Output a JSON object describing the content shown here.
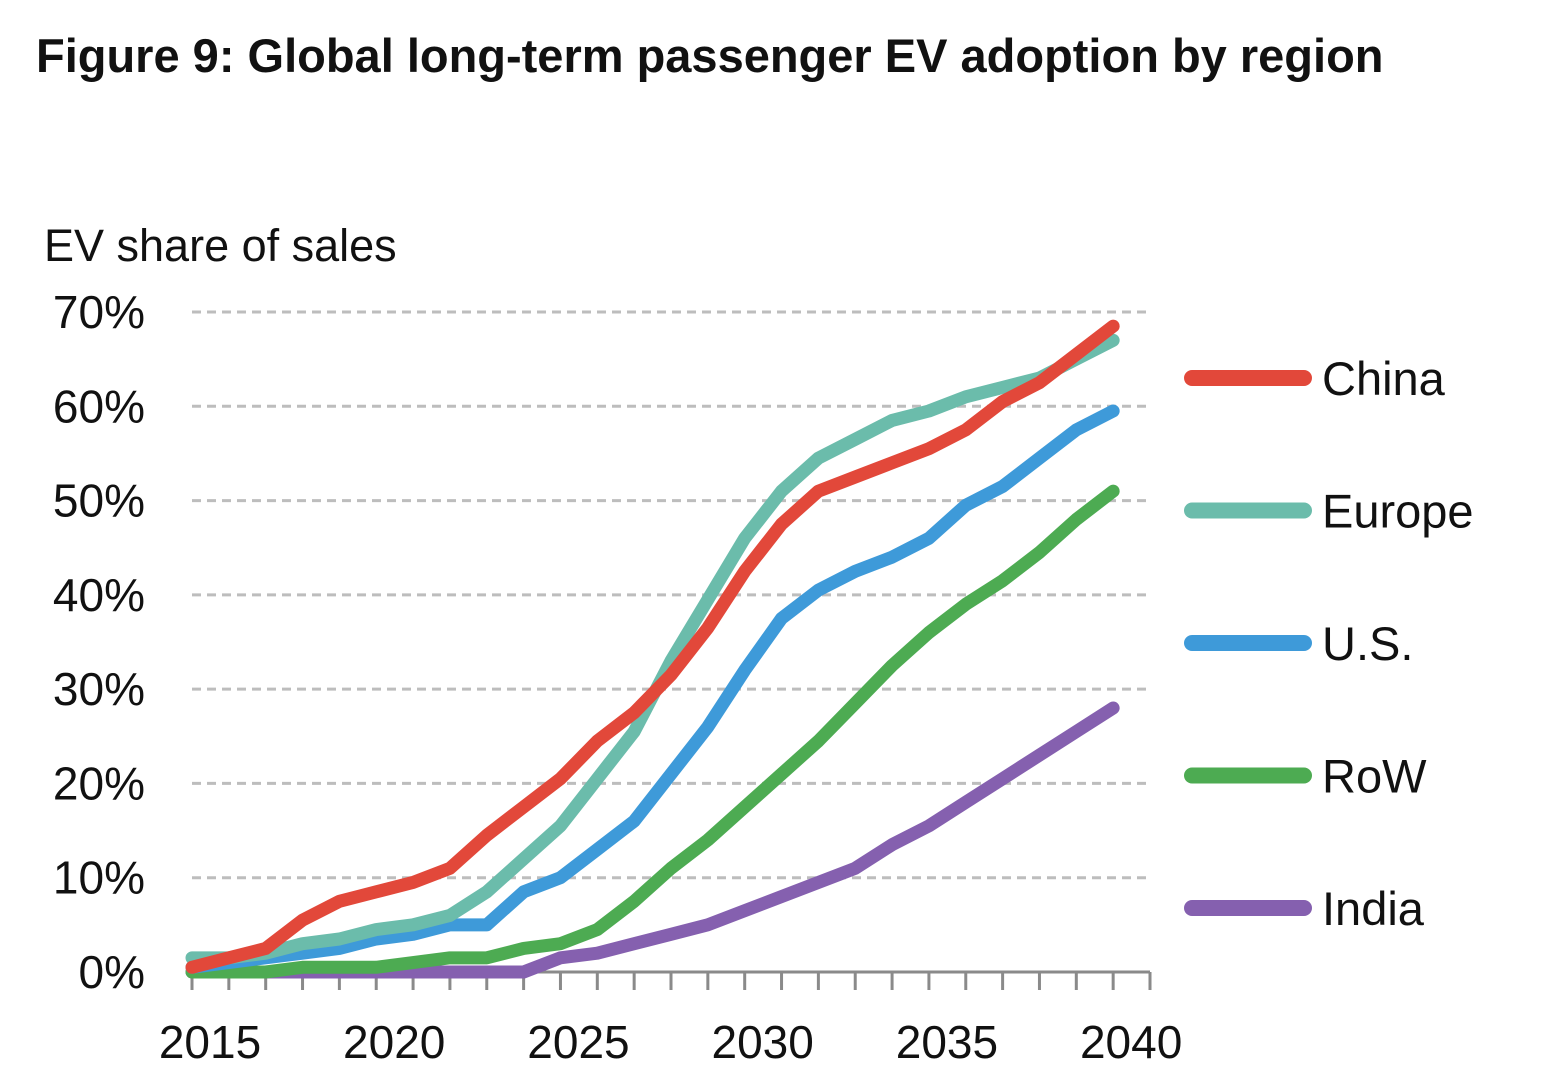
{
  "chart_data": {
    "type": "line",
    "title": "Figure 9: Global long-term passenger EV adoption by region",
    "ylabel": "EV share of sales",
    "xlabel": "",
    "x": [
      2015,
      2016,
      2017,
      2018,
      2019,
      2020,
      2021,
      2022,
      2023,
      2024,
      2025,
      2026,
      2027,
      2028,
      2029,
      2030,
      2031,
      2032,
      2033,
      2034,
      2035,
      2036,
      2037,
      2038,
      2039,
      2040
    ],
    "xlim": [
      2015,
      2041
    ],
    "ylim": [
      0,
      70
    ],
    "x_ticks": [
      "2015",
      "2020",
      "2025",
      "2030",
      "2035",
      "2040"
    ],
    "y_ticks": [
      "0%",
      "10%",
      "20%",
      "30%",
      "40%",
      "50%",
      "60%",
      "70%"
    ],
    "grid": "horizontal dashed",
    "legend_position": "right",
    "series": [
      {
        "name": "China",
        "color": "#e2483a",
        "values": [
          0.5,
          1.5,
          2.5,
          5.5,
          7.5,
          8.5,
          9.5,
          11.0,
          14.5,
          17.5,
          20.5,
          24.5,
          27.5,
          31.5,
          36.5,
          42.5,
          47.5,
          51.0,
          52.5,
          54.0,
          55.5,
          57.5,
          60.5,
          62.5,
          65.5,
          68.5
        ]
      },
      {
        "name": "Europe",
        "color": "#6bbcab",
        "values": [
          1.5,
          1.5,
          2.0,
          3.0,
          3.5,
          4.5,
          5.0,
          6.0,
          8.5,
          12.0,
          15.5,
          20.5,
          25.5,
          33.0,
          39.5,
          46.0,
          51.0,
          54.5,
          56.5,
          58.5,
          59.5,
          61.0,
          62.0,
          63.0,
          65.0,
          67.0
        ]
      },
      {
        "name": "U.S.",
        "color": "#3e9ad9",
        "values": [
          0.5,
          1.0,
          1.5,
          2.0,
          2.5,
          3.5,
          4.0,
          5.0,
          5.0,
          8.5,
          10.0,
          13.0,
          16.0,
          21.0,
          26.0,
          32.0,
          37.5,
          40.5,
          42.5,
          44.0,
          46.0,
          49.5,
          51.5,
          54.5,
          57.5,
          59.5
        ]
      },
      {
        "name": "RoW",
        "color": "#4dab52",
        "values": [
          0.0,
          0.0,
          0.0,
          0.5,
          0.5,
          0.5,
          1.0,
          1.5,
          1.5,
          2.5,
          3.0,
          4.5,
          7.5,
          11.0,
          14.0,
          17.5,
          21.0,
          24.5,
          28.5,
          32.5,
          36.0,
          39.0,
          41.5,
          44.5,
          48.0,
          51.0
        ]
      },
      {
        "name": "India",
        "color": "#8560af",
        "values": [
          0.0,
          0.0,
          0.0,
          0.0,
          0.0,
          0.0,
          0.0,
          0.0,
          0.0,
          0.0,
          1.5,
          2.0,
          3.0,
          4.0,
          5.0,
          6.5,
          8.0,
          9.5,
          11.0,
          13.5,
          15.5,
          18.0,
          20.5,
          23.0,
          25.5,
          28.0
        ]
      }
    ]
  }
}
